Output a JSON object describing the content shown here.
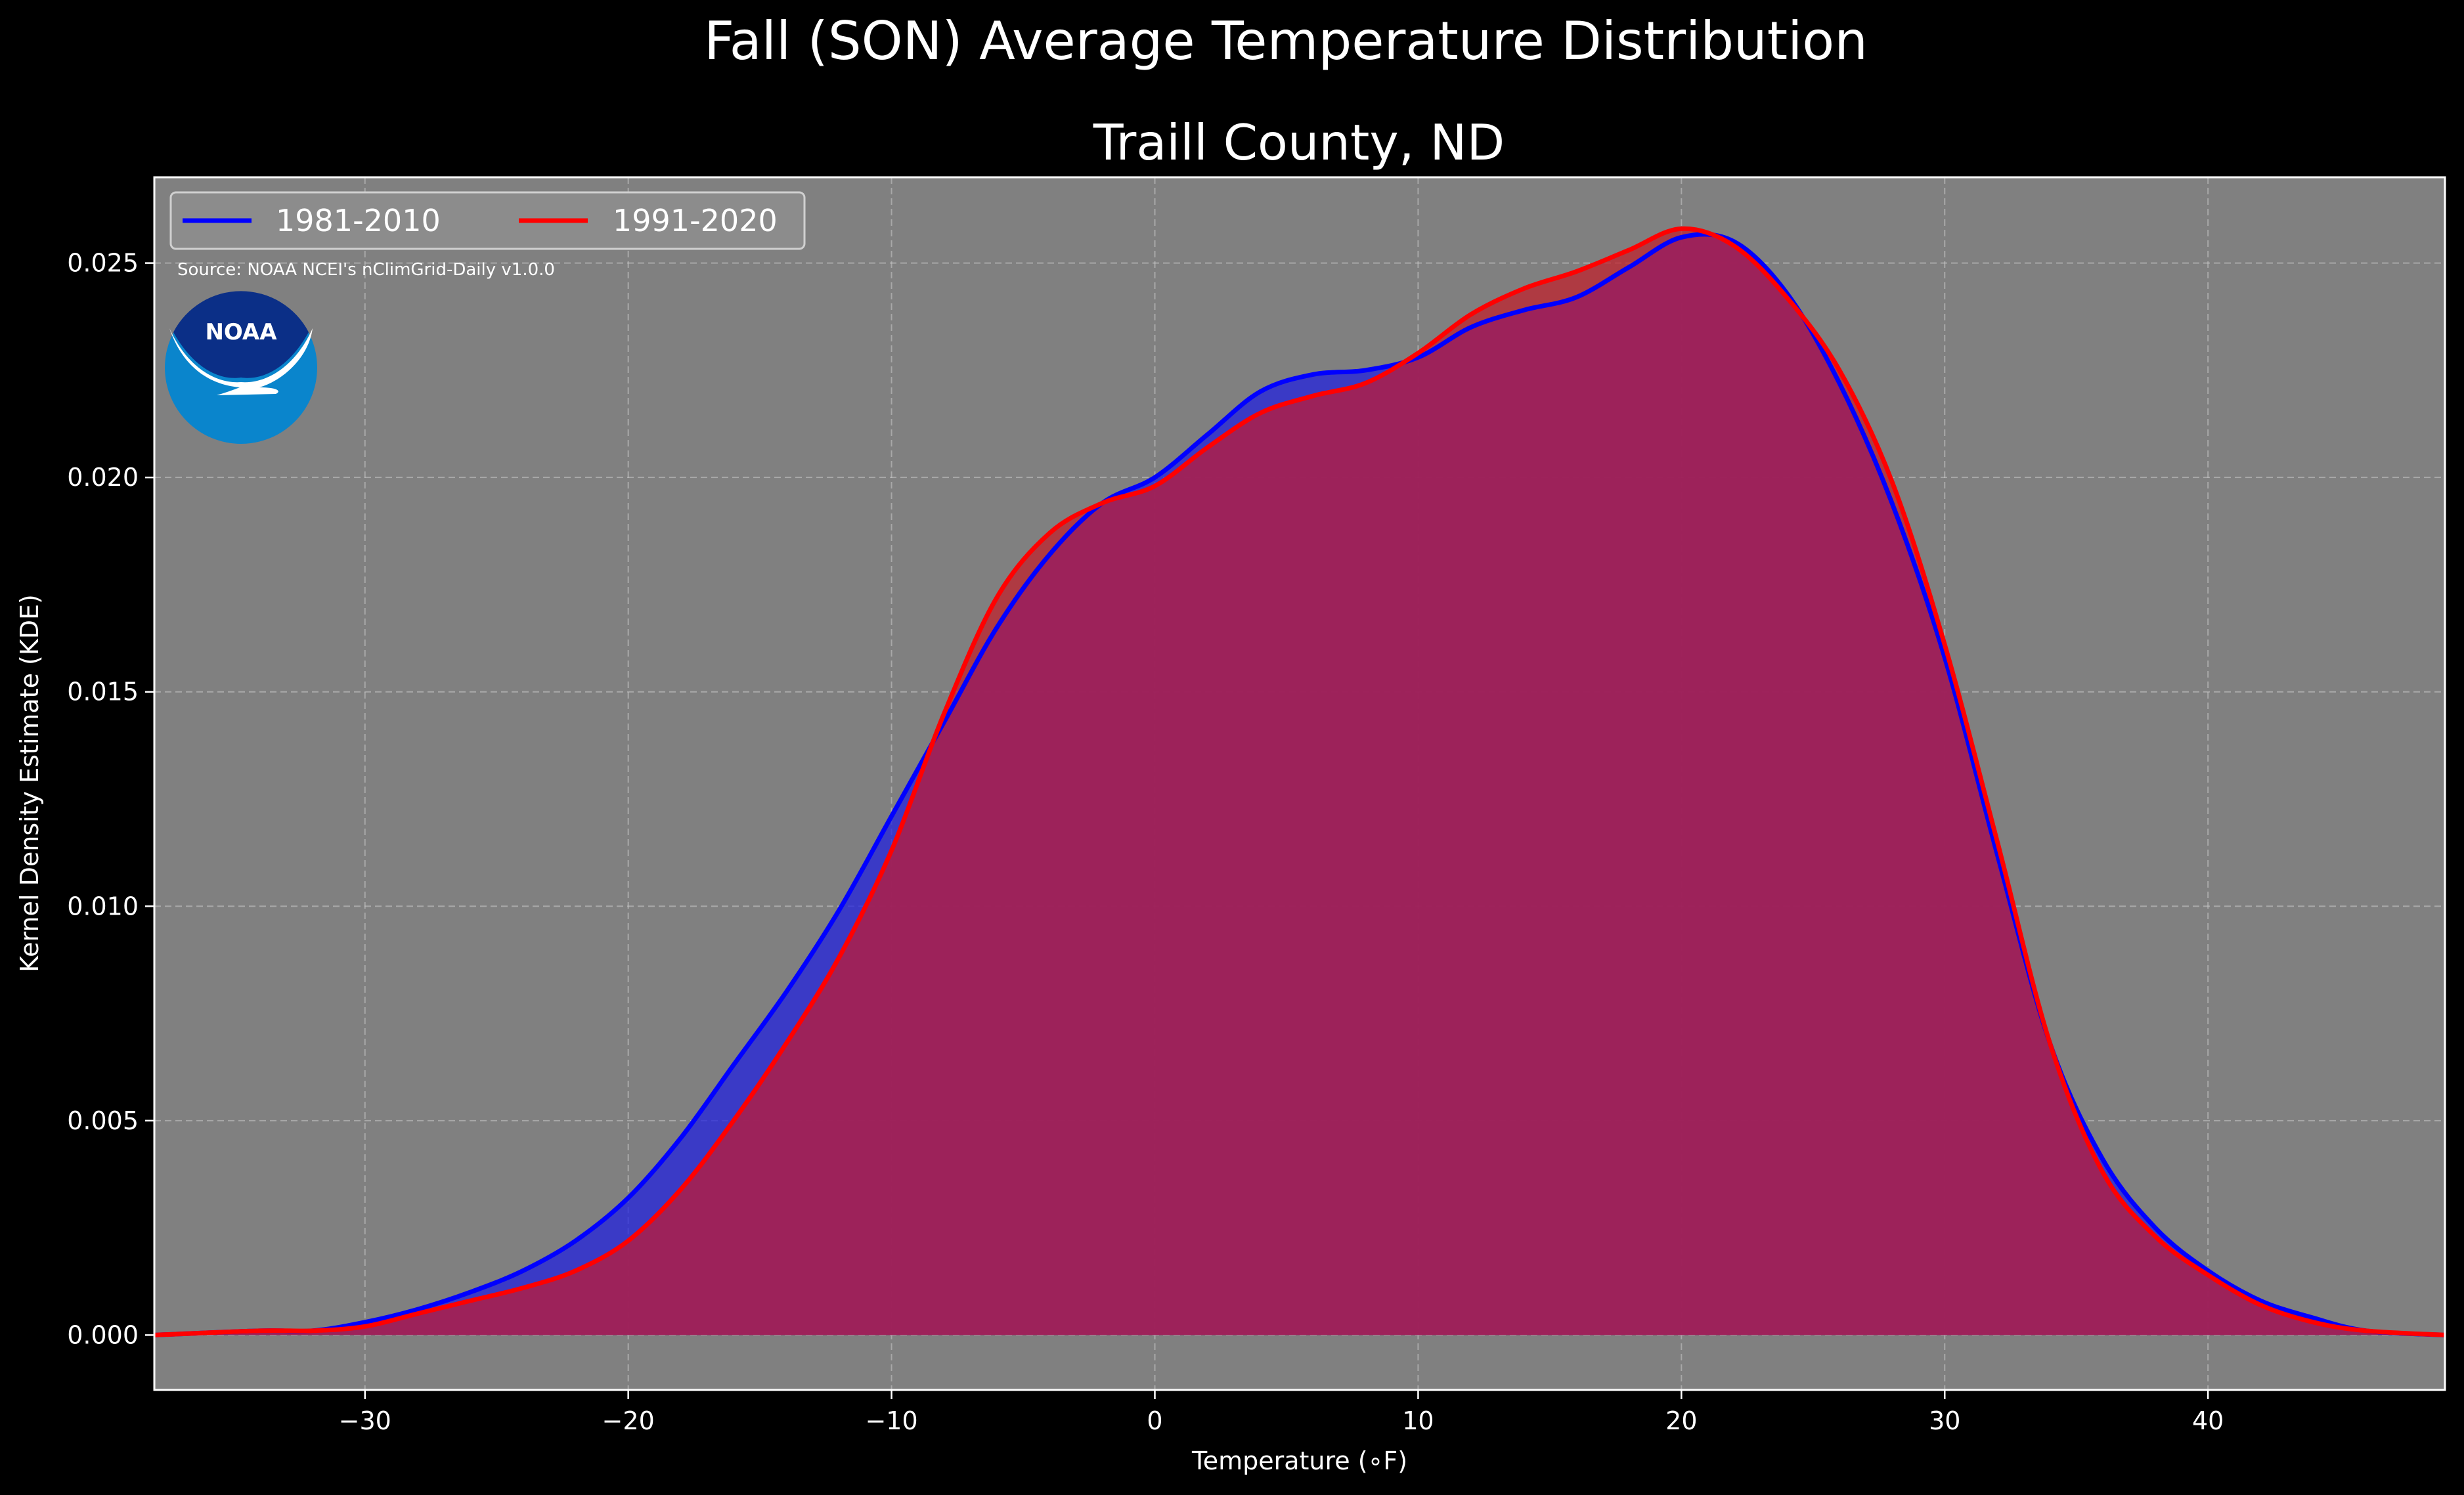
{
  "chart_data": {
    "type": "area",
    "title": "Fall (SON) Average Temperature Distribution",
    "subtitle": "Traill County, ND",
    "xlabel": "Temperature (∘F)",
    "ylabel": "Kernel Density Estimate (KDE)",
    "xlim": [
      -38,
      49
    ],
    "ylim": [
      -0.00128,
      0.027
    ],
    "x_ticks": [
      -30,
      -20,
      -10,
      0,
      10,
      20,
      30,
      40
    ],
    "x_tick_labels": [
      "−30",
      "−20",
      "−10",
      "0",
      "10",
      "20",
      "30",
      "40"
    ],
    "y_ticks": [
      0.0,
      0.005,
      0.01,
      0.015,
      0.02,
      0.025
    ],
    "y_tick_labels": [
      "0.000",
      "0.005",
      "0.010",
      "0.015",
      "0.020",
      "0.025"
    ],
    "grid": true,
    "legend_position": "top-left",
    "source_note": "Source: NOAA NCEI's nClimGrid-Daily v1.0.0",
    "logo_text": "NOAA",
    "colors": {
      "background": "#000000",
      "plot_background": "#808080",
      "series_1981": "#0000ff",
      "series_1991": "#ff0000",
      "fill_1981": "#1e1ee0",
      "fill_1991": "#c01e2a",
      "overlap": "#9e1f5e"
    },
    "series": [
      {
        "name": "1981-2010",
        "color": "#0000ff",
        "x": [
          -38,
          -34,
          -32,
          -30,
          -28,
          -26,
          -24,
          -22,
          -20,
          -18,
          -16,
          -14,
          -12,
          -10,
          -8,
          -6,
          -4,
          -2,
          0,
          2,
          4,
          6,
          8,
          10,
          12,
          14,
          16,
          18,
          20,
          22,
          24,
          26,
          28,
          30,
          32,
          34,
          36,
          38,
          40,
          42,
          44,
          46,
          49
        ],
        "values": [
          0.0,
          0.0001,
          0.0001,
          0.0003,
          0.0006,
          0.001,
          0.0015,
          0.0022,
          0.0032,
          0.0046,
          0.0063,
          0.008,
          0.0099,
          0.0121,
          0.0143,
          0.0165,
          0.0182,
          0.0194,
          0.02,
          0.021,
          0.022,
          0.0224,
          0.0225,
          0.0228,
          0.0235,
          0.0239,
          0.0242,
          0.0249,
          0.0256,
          0.0255,
          0.0243,
          0.0222,
          0.0194,
          0.0158,
          0.0112,
          0.0068,
          0.0041,
          0.0025,
          0.0015,
          0.0008,
          0.0004,
          0.0001,
          0.0
        ]
      },
      {
        "name": "1991-2020",
        "color": "#ff0000",
        "x": [
          -38,
          -34,
          -32,
          -30,
          -28,
          -26,
          -24,
          -22,
          -20,
          -18,
          -16,
          -14,
          -12,
          -10,
          -8,
          -6,
          -4,
          -2,
          0,
          2,
          4,
          6,
          8,
          10,
          12,
          14,
          16,
          18,
          20,
          22,
          24,
          26,
          28,
          30,
          32,
          34,
          36,
          38,
          40,
          42,
          44,
          46,
          49
        ],
        "values": [
          0.0,
          0.0001,
          0.0001,
          0.0002,
          0.0005,
          0.0008,
          0.0011,
          0.0015,
          0.0022,
          0.0034,
          0.005,
          0.0068,
          0.0088,
          0.0113,
          0.0145,
          0.0172,
          0.0187,
          0.0194,
          0.0198,
          0.0207,
          0.0215,
          0.0219,
          0.0222,
          0.0229,
          0.0238,
          0.0244,
          0.0248,
          0.0253,
          0.0258,
          0.0254,
          0.0242,
          0.0225,
          0.0199,
          0.0161,
          0.0115,
          0.0068,
          0.0038,
          0.0023,
          0.0014,
          0.0007,
          0.0003,
          0.0001,
          0.0
        ]
      }
    ]
  }
}
